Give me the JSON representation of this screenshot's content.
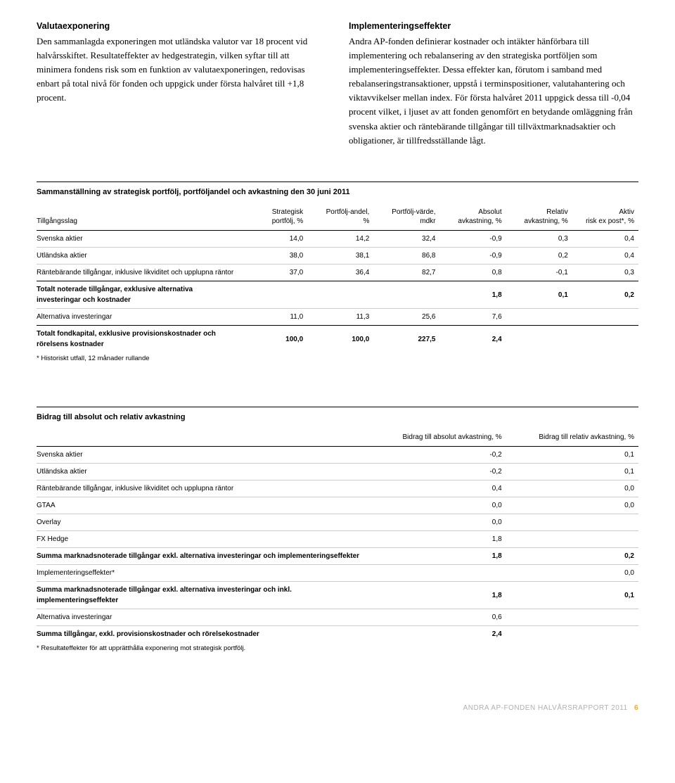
{
  "col1": {
    "heading": "Valutaexponering",
    "body": "Den sammanlagda exponeringen mot utländska valutor var 18 procent vid halvårsskiftet. Resultateffekter av hedgestrategin, vilken syftar till att minimera fondens risk som en funktion av valutaexponeringen, redovisas enbart på total nivå för fonden och uppgick under första halvåret till +1,8 procent."
  },
  "col2": {
    "heading": "Implementeringseffekter",
    "body": "Andra AP-fonden definierar kostnader och intäkter hänförbara till implementering och rebalansering av den strategiska portföljen som implementeringseffekter. Dessa effekter kan, förutom i samband med rebalanseringstransaktioner, uppstå i terminspositioner, valutahantering och viktavvikelser mellan index. För första halvåret 2011 uppgick dessa till -0,04 procent vilket, i ljuset av att fonden genomfört en betydande omläggning från svenska aktier och räntebärande tillgångar till tillväxtmarknadsaktier och obligationer, är tillfredsställande lågt."
  },
  "table1": {
    "title": "Sammanställning av strategisk portfölj, portföljandel och avkastning den 30 juni 2011",
    "headers": [
      "Tillgångsslag",
      "Strategisk portfölj, %",
      "Portfölj-andel, %",
      "Portfölj-värde, mdkr",
      "Absolut avkastning, %",
      "Relativ avkastning, %",
      "Aktiv risk ex post*, %"
    ],
    "rows": [
      {
        "cells": [
          "Svenska aktier",
          "14,0",
          "14,2",
          "32,4",
          "-0,9",
          "0,3",
          "0,4"
        ]
      },
      {
        "cells": [
          "Utländska aktier",
          "38,0",
          "38,1",
          "86,8",
          "-0,9",
          "0,2",
          "0,4"
        ]
      },
      {
        "cells": [
          "Räntebärande tillgångar, inklusive likviditet och upplupna räntor",
          "37,0",
          "36,4",
          "82,7",
          "0,8",
          "-0,1",
          "0,3"
        ],
        "section_end": true
      },
      {
        "cells": [
          "Totalt noterade tillgångar, exklusive alternativa investeringar och kostnader",
          "",
          "",
          "",
          "1,8",
          "0,1",
          "0,2"
        ],
        "bold": true
      },
      {
        "cells": [
          "Alternativa investeringar",
          "11,0",
          "11,3",
          "25,6",
          "7,6",
          "",
          ""
        ],
        "section_end": true
      },
      {
        "cells": [
          "Totalt fondkapital, exklusive provisionskostnader och rörelsens kostnader",
          "100,0",
          "100,0",
          "227,5",
          "2,4",
          "",
          ""
        ],
        "bold": true,
        "no_border": true
      }
    ],
    "footnote": "* Historiskt utfall, 12 månader rullande"
  },
  "table2": {
    "title": "Bidrag till absolut och relativ avkastning",
    "headers": [
      "",
      "Bidrag till absolut avkastning, %",
      "Bidrag till relativ avkastning, %"
    ],
    "rows": [
      {
        "cells": [
          "Svenska aktier",
          "-0,2",
          "0,1"
        ]
      },
      {
        "cells": [
          "Utländska aktier",
          "-0,2",
          "0,1"
        ]
      },
      {
        "cells": [
          "Räntebärande tillgångar, inklusive likviditet och upplupna räntor",
          "0,4",
          "0,0"
        ]
      },
      {
        "cells": [
          "GTAA",
          "0,0",
          "0,0"
        ]
      },
      {
        "cells": [
          "Overlay",
          "0,0",
          ""
        ]
      },
      {
        "cells": [
          "FX Hedge",
          "1,8",
          ""
        ]
      },
      {
        "cells": [
          "Summa marknadsnoterade tillgångar exkl. alternativa investeringar och implementeringseffekter",
          "1,8",
          "0,2"
        ],
        "bold": true
      },
      {
        "cells": [
          "Implementeringseffekter*",
          "",
          "0,0"
        ]
      },
      {
        "cells": [
          "Summa marknadsnoterade tillgångar exkl. alternativa investeringar och inkl. implementeringseffekter",
          "1,8",
          "0,1"
        ],
        "bold": true
      },
      {
        "cells": [
          "Alternativa investeringar",
          "0,6",
          ""
        ]
      },
      {
        "cells": [
          "Summa tillgångar, exkl. provisionskostnader och rörelsekostnader",
          "2,4",
          ""
        ],
        "bold": true,
        "no_border": true
      }
    ],
    "footnote": "* Resultateffekter för att upprätthålla exponering mot strategisk portfölj."
  },
  "footer": {
    "text": "ANDRA AP-FONDEN HALVÅRSRAPPORT 2011",
    "page": "6"
  }
}
